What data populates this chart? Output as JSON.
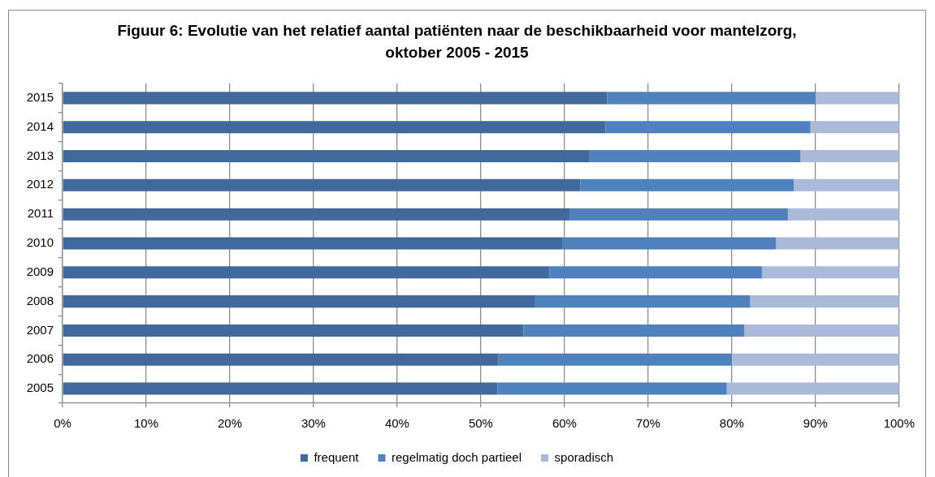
{
  "chart_data": {
    "type": "bar",
    "orientation": "horizontal",
    "stacked": true,
    "title": "Figuur 6: Evolutie van het relatief aantal patiënten naar de beschikbaarheid voor mantelzorg,\noktober 2005 - 2015",
    "categories": [
      "2015",
      "2014",
      "2013",
      "2012",
      "2011",
      "2010",
      "2009",
      "2008",
      "2007",
      "2006",
      "2005"
    ],
    "series": [
      {
        "name": "frequent",
        "color": "#41699c",
        "values": [
          65.1,
          64.9,
          63.0,
          61.9,
          60.6,
          59.8,
          58.2,
          56.5,
          55.1,
          52.1,
          52.0
        ]
      },
      {
        "name": "regelmatig doch partieel",
        "color": "#4f81bd",
        "values": [
          24.9,
          24.5,
          25.2,
          25.5,
          26.1,
          25.5,
          25.4,
          25.7,
          26.4,
          27.9,
          27.4
        ]
      },
      {
        "name": "sporadisch",
        "color": "#aabad8",
        "values": [
          10.0,
          10.6,
          11.8,
          12.6,
          13.3,
          14.7,
          16.4,
          17.8,
          18.5,
          20.0,
          20.6
        ]
      }
    ],
    "xlim": [
      0,
      100
    ],
    "xticks": [
      {
        "value": 0,
        "label": "0%"
      },
      {
        "value": 10,
        "label": "10%"
      },
      {
        "value": 20,
        "label": "20%"
      },
      {
        "value": 30,
        "label": "30%"
      },
      {
        "value": 40,
        "label": "40%"
      },
      {
        "value": 50,
        "label": "50%"
      },
      {
        "value": 60,
        "label": "60%"
      },
      {
        "value": 70,
        "label": "70%"
      },
      {
        "value": 80,
        "label": "80%"
      },
      {
        "value": 90,
        "label": "90%"
      },
      {
        "value": 100,
        "label": "100%"
      }
    ],
    "grid": "x",
    "legend": "bottom"
  }
}
